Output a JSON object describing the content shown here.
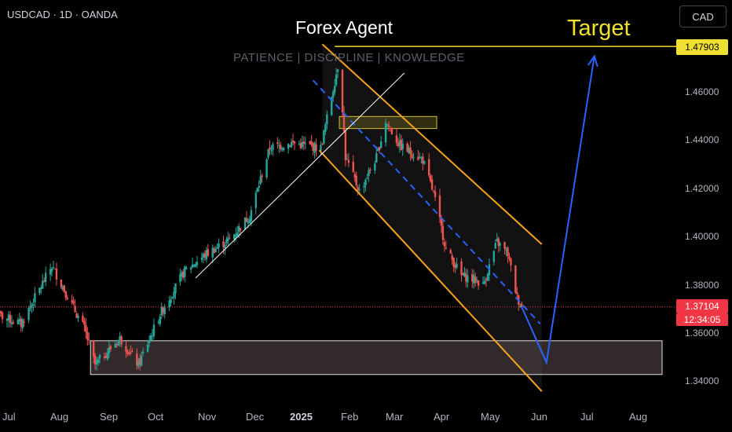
{
  "header": {
    "symbol_line": "USDCAD · 1D · OANDA"
  },
  "currency_button": "CAD",
  "watermark": {
    "title": "Forex Agent",
    "subtitle": "PATIENCE | DISCIPLINE | KNOWLEDGE"
  },
  "annotation": {
    "target_label": "Target"
  },
  "price_labels": {
    "target_price": "1.47903",
    "last_price": "1.37104",
    "countdown": "12:34:05"
  },
  "colors": {
    "up": "#26a69a",
    "down": "#ef5350",
    "channel": "#f7a21b",
    "target_line": "#f0e130",
    "projection": "#2962ff",
    "support_zone": "#5b4a4e"
  },
  "chart_data": {
    "type": "candlestick",
    "title": "",
    "xlabel": "",
    "ylabel": "",
    "ylim": [
      1.333,
      1.5
    ],
    "y_ticks": [
      "1.34000",
      "1.36000",
      "1.38000",
      "1.40000",
      "1.42000",
      "1.44000",
      "1.46000"
    ],
    "x_ticks": [
      "Jul",
      "Aug",
      "Sep",
      "Oct",
      "Nov",
      "Dec",
      "2025",
      "Feb",
      "Mar",
      "Apr",
      "May",
      "Jun",
      "Jul",
      "Aug"
    ],
    "series": [
      {
        "name": "",
        "anchors": [
          [
            "2024-06-24",
            1.368
          ],
          [
            "2024-07-10",
            1.364
          ],
          [
            "2024-07-30",
            1.388
          ],
          [
            "2024-08-20",
            1.362
          ],
          [
            "2024-08-27",
            1.347
          ],
          [
            "2024-09-12",
            1.358
          ],
          [
            "2024-09-24",
            1.347
          ],
          [
            "2024-10-08",
            1.368
          ],
          [
            "2024-10-24",
            1.386
          ],
          [
            "2024-11-07",
            1.393
          ],
          [
            "2024-11-22",
            1.399
          ],
          [
            "2024-12-05",
            1.409
          ],
          [
            "2024-12-18",
            1.437
          ],
          [
            "2025-01-01",
            1.439
          ],
          [
            "2025-01-20",
            1.437
          ],
          [
            "2025-02-01",
            1.474
          ],
          [
            "2025-02-05",
            1.433
          ],
          [
            "2025-02-14",
            1.419
          ],
          [
            "2025-02-25",
            1.433
          ],
          [
            "2025-03-03",
            1.448
          ],
          [
            "2025-03-12",
            1.438
          ],
          [
            "2025-03-27",
            1.432
          ],
          [
            "2025-04-03",
            1.418
          ],
          [
            "2025-04-11",
            1.395
          ],
          [
            "2025-04-21",
            1.384
          ],
          [
            "2025-05-01",
            1.382
          ],
          [
            "2025-05-05",
            1.38
          ],
          [
            "2025-05-14",
            1.398
          ],
          [
            "2025-05-21",
            1.393
          ],
          [
            "2025-05-27",
            1.375
          ],
          [
            "2025-05-30",
            1.371
          ]
        ]
      }
    ],
    "levels": {
      "target": 1.47903,
      "last": 1.37104
    },
    "support_zone": [
      1.343,
      1.357
    ],
    "resistance_box": [
      1.445,
      1.45
    ],
    "grid": false,
    "legend": "none"
  }
}
